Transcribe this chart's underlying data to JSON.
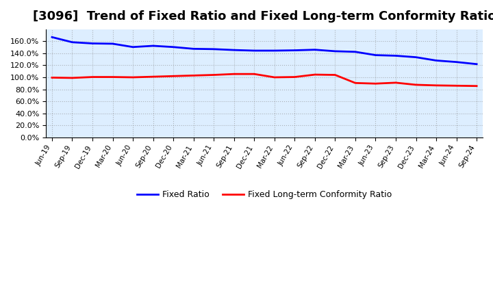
{
  "title": "[3096]  Trend of Fixed Ratio and Fixed Long-term Conformity Ratio",
  "labels": [
    "Jun-19",
    "Sep-19",
    "Dec-19",
    "Mar-20",
    "Jun-20",
    "Sep-20",
    "Dec-20",
    "Mar-21",
    "Jun-21",
    "Sep-21",
    "Dec-21",
    "Mar-22",
    "Jun-22",
    "Sep-22",
    "Dec-22",
    "Mar-23",
    "Jun-23",
    "Sep-23",
    "Dec-23",
    "Mar-24",
    "Jun-24",
    "Sep-24"
  ],
  "fixed_ratio": [
    167.0,
    158.5,
    156.5,
    156.0,
    150.5,
    152.5,
    150.5,
    147.5,
    147.0,
    145.5,
    144.5,
    144.5,
    145.0,
    146.0,
    143.5,
    142.5,
    137.0,
    136.0,
    133.5,
    128.0,
    125.5,
    122.0
  ],
  "fixed_lt_ratio": [
    99.5,
    99.0,
    100.5,
    100.5,
    100.0,
    101.0,
    102.0,
    103.0,
    104.0,
    105.5,
    105.5,
    100.0,
    100.5,
    104.5,
    104.0,
    90.5,
    89.5,
    91.0,
    87.5,
    86.5,
    86.0,
    85.5
  ],
  "fixed_ratio_color": "#0000FF",
  "fixed_lt_ratio_color": "#FF0000",
  "background_color": "#FFFFFF",
  "plot_bg_color": "#DDEEFF",
  "grid_color": "#888888",
  "ylim": [
    0,
    180
  ],
  "yticks": [
    0,
    20,
    40,
    60,
    80,
    100,
    120,
    140,
    160
  ],
  "title_fontsize": 13,
  "legend_labels": [
    "Fixed Ratio",
    "Fixed Long-term Conformity Ratio"
  ]
}
